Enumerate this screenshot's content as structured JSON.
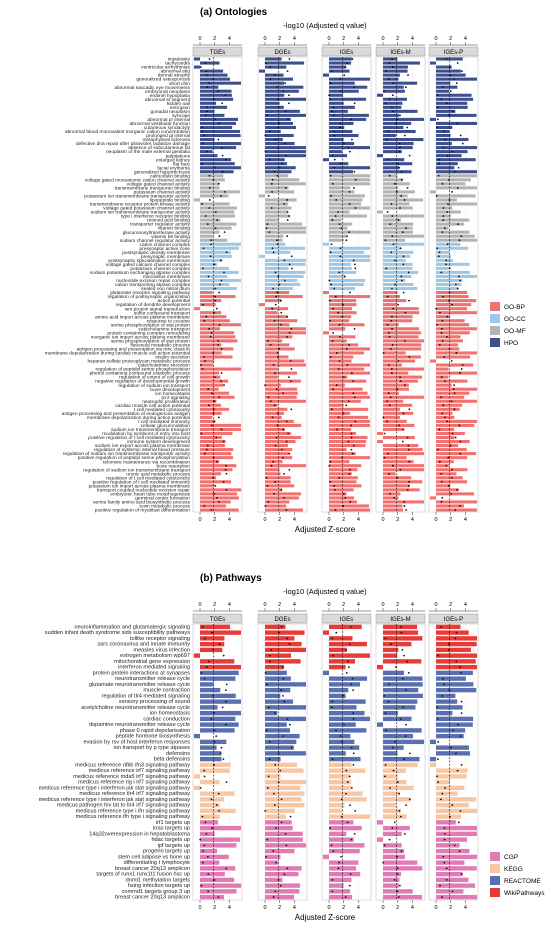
{
  "chart_data": [
    {
      "type": "bar",
      "title": "(a) Ontologies",
      "top_axis_label": "-log10 (Adjusted  q value)",
      "xlabel": "Adjusted Z-score",
      "top_ticks": [
        "0",
        "2",
        "4"
      ],
      "bottom_ticks": [
        "0",
        "2",
        "4"
      ],
      "xlim": [
        -1,
        6
      ],
      "panels": [
        "TGEs",
        "DGEs",
        "IGEs",
        "IGEs-M",
        "IGEs-P"
      ],
      "groups": [
        {
          "name": "HPO",
          "color": "#3e4f8c",
          "terms": [
            "impulsivity",
            "tachycardia",
            "ventricular arrhythmias",
            "abnormal ekg",
            "dermal atrophy",
            "generalized osteoporosis",
            "short chin",
            "abnormal saccadic eye movements",
            "embryonal neoplasm",
            "enamel hypoplasia",
            "abnormal st segment",
            "hidden nail",
            "entropion",
            "gonadal neoplasm",
            "syncope",
            "abnormal pr interval",
            "abnormal vestibular function",
            "cutaneous syndactyly",
            "abnormal blood monovalent inorganic cation concentration",
            "prolonged qt interval",
            "metaphyseal sclerosis",
            "defective dna repair after ultraviolet radiation damage",
            "absence of subcutaneous fat",
            "neoplasm of the male external genitalia",
            "palpitations",
            "enlarged kidney",
            "flat face",
            "facial erythema",
            "generalized hypertrichosis"
          ]
        },
        {
          "name": "GO-MF",
          "color": "#b3b3b3",
          "terms": [
            "calmodulin binding",
            "voltage gated monoatomic cation channel activity",
            "voltage gated channel activity",
            "transmembrane transporter binding",
            "potassium channel activity",
            "potassium ion transmembrane transporter activity",
            "lipopeptide binding",
            "transmembrane receptor protein kinase activity",
            "voltage gated potassium channel activity",
            "sodium ion transmembrane transporter activity",
            "type i interferon receptor binding",
            "retinoid acid binding",
            "transporter regulator activity",
            "vitamin binding",
            "glucuronosyltransferase activity",
            "vitamin b6 binding",
            "sodium channel regulator activity"
          ]
        },
        {
          "name": "GO-CC",
          "color": "#9ec8e8",
          "terms": [
            "cation channel complex",
            "presynaptic active zone",
            "postsynaptic density membrane",
            "presynaptic membrane",
            "postsynaptic specialization membrane",
            "voltage gated calcium channel complex",
            "potassium channel complex",
            "sodium potassium exchanging atpase complex",
            "microvillus membrane",
            "nucleotide excision repair complex",
            "cation transporting atpase complex",
            "sealed non mitral dtum"
          ]
        },
        {
          "name": "GO-BP",
          "color": "#f07270",
          "terms": [
            "glutamate receptor signaling pathway",
            "regulation of postsynaptic organization",
            "action potential",
            "regulation of dendrite development",
            "wnt protein signal transduction",
            "sulfur compound transport",
            "amino acid import across plasma membrane",
            "response to cocaine",
            "serine phosphorylation of stat protein",
            "catecholamine transport",
            "protein containing complex remodeling",
            "inorganic ion import across plasma membrane",
            "serine phosphorylation of stat protein",
            "flavonoid metabolic process",
            "antigen processing and presentation via mhc class ib",
            "membrane depolarization during cardiac muscle cell action potential",
            "insulin secretion",
            "heparan sulfate proteoglycan metabolic process",
            "catecholamine secretion",
            "regulation of peptidyl serine phosphorylation",
            "phenol containing compound catabolic process",
            "regulation of extent of cell growth",
            "negative regulation of developmental growth",
            "regulation of sodium ion transport",
            "bone development",
            "ion homeostasis",
            "tcr2 signaling",
            "neutrophil proliferation",
            "cardiac muscle cell action potential",
            "t cell mediated cytotoxicity",
            "antigen processing and presentation of endogenous antigen",
            "membrane depolarization during action potential",
            "t cell mediated immunity",
            "cellular glucuronidation",
            "sodium ion transmembrane transport",
            "modulation by symbiont of entry into host",
            "positive regulation of t cell mediated cytotoxicity",
            "immune system development",
            "sodium ion export across plasma membrane",
            "regulation of systemic arterial blood pressure",
            "regulation of sodium ion transmembrane transporter activity",
            "positive regulation of peptidyl serine phosphorylation",
            "telomere maintenance via recombination",
            "bone resorption",
            "regulation of sodium ion transmembrane transport",
            "uronic acid metabolic process",
            "regulation of t cell mediated cytotoxicity",
            "positive regulation of t cell mediated immunity",
            "potassium ion import across plasma membrane",
            "transport coupled nucleotide excision repair",
            "embryonic heart tube morphogenesis",
            "germinal center formation",
            "serine family amino acid biosynthetic process",
            "toxin metabolic process",
            "positive regulation of myoblast differentiation"
          ]
        }
      ],
      "legend": {
        "position": "right",
        "entries": [
          {
            "name": "GO-BP",
            "color": "#f07270"
          },
          {
            "name": "GO-CC",
            "color": "#9ec8e8"
          },
          {
            "name": "GO-MF",
            "color": "#b3b3b3"
          },
          {
            "name": "HPO",
            "color": "#3e4f8c"
          }
        ]
      }
    },
    {
      "type": "bar",
      "title": "(b) Pathways",
      "top_axis_label": "-log10 (Adjusted  q value)",
      "xlabel": "Adjusted Z-score",
      "top_ticks": [
        "0",
        "2",
        "4"
      ],
      "bottom_ticks": [
        "0",
        "2",
        "4"
      ],
      "xlim": [
        -1,
        6
      ],
      "panels": [
        "TGEs",
        "DGEs",
        "IGEs",
        "IGEs-M",
        "IGEs-P"
      ],
      "groups": [
        {
          "name": "WikiPathways",
          "color": "#e63b36",
          "terms": [
            "neuroinflammation and glutamatergic signaling",
            "sudden infant death syndrome sids susceptibility pathways",
            "tollike receptor signaling",
            "sars coronavirus and innate immunity",
            "measles virus infection",
            "estrogen metabolism wp697",
            "mitochondrial gene expression",
            "interferon mediated signaling"
          ]
        },
        {
          "name": "REACTOME",
          "color": "#5a6fb0",
          "terms": [
            "protein protein interactions at synapses",
            "neurotransmitter release cycle",
            "glutamate neurotransmitter release cycle",
            "muscle contraction",
            "regulation of tlr4 mediated signaling",
            "sensory processing of sound",
            "acetylcholine neurotransmitter release cycle",
            "ion homeostasis",
            "cardiac conduction",
            "dopamine neurotransmitter release cycle",
            "phase 0 rapid depolarisation",
            "peptide hormone biosynthesis",
            "evasion by rsv of host interferon responses",
            "ion transport by p type atpases",
            "defensins",
            "beta defensins"
          ]
        },
        {
          "name": "KEGG",
          "color": "#f7c6a3",
          "terms": [
            "medicus reference nfkb ifn3 signaling pathway",
            "medicus reference irf7 signaling pathway",
            "medicus reference mda5 irf7 signaling pathway",
            "medicus reference rig i irf7 signaling pathway",
            "medicus reference type i interferon jak stat signaling pathway",
            "medicus reference tlr4 irf7 signaling pathway",
            "medicus reference type i interferon jak stat signaling pathway",
            "medicus pathogen hiv tat to tlr4 irf7 signaling pathway",
            "medicus reference type i ifn signaling pathway",
            "medicus reference ifn type i signaling pathway"
          ]
        },
        {
          "name": "CGP",
          "color": "#e07bb5",
          "terms": [
            "irf1 targets up",
            "kras targets up",
            "14q32overexpression in hepatoblastoma",
            "hdac targets up",
            "ipf targets up",
            "progerin targets up",
            "stem cell adipose vs bone up",
            "differentiating t lymphocyte",
            "breast cancer 20q13 amplicon",
            "targets of runx1 runx1t1 fusion hsc up",
            "dnmt1 methylation targets",
            "hsing infection targets up",
            "commd1 targets group 3 up",
            "breast cancer 20q13 amplicon"
          ]
        }
      ],
      "legend": {
        "position": "right",
        "entries": [
          {
            "name": "CGP",
            "color": "#e07bb5"
          },
          {
            "name": "KEGG",
            "color": "#f7c6a3"
          },
          {
            "name": "REACTOME",
            "color": "#5a6fb0"
          },
          {
            "name": "WikiPathways",
            "color": "#e63b36"
          }
        ]
      }
    }
  ]
}
